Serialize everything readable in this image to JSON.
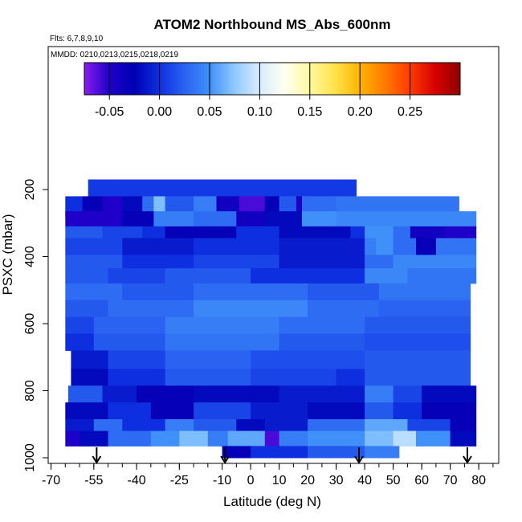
{
  "chart_data": {
    "type": "heatmap",
    "title": "ATOM2 Northbound MS_Abs_600nm",
    "subtitle_flights": "Flts: 6,7,8,9,10",
    "subtitle_dates": "MMDD: 0210,0213,0215,0218,0219",
    "xlabel": "Latitude (deg N)",
    "ylabel": "PSXC (mbar)",
    "xlim": [
      -71,
      87
    ],
    "ylim": [
      1000,
      100
    ],
    "x_ticks": [
      -70,
      -55,
      -40,
      -25,
      -10,
      0,
      10,
      20,
      30,
      40,
      50,
      60,
      70,
      80
    ],
    "y_ticks": [
      200,
      400,
      600,
      800,
      1000
    ],
    "colorbar": {
      "range": [
        -0.075,
        0.3
      ],
      "ticks": [
        "-0.05",
        "0.00",
        "0.05",
        "0.10",
        "0.15",
        "0.20",
        "0.25"
      ],
      "tick_values": [
        -0.05,
        0.0,
        0.05,
        0.1,
        0.15,
        0.2,
        0.25
      ],
      "colors": [
        "#8b1cf0",
        "#1e00c8",
        "#0000b4",
        "#0d2fe0",
        "#2a63f2",
        "#3f90f8",
        "#8ec9ff",
        "#d8ecff",
        "#fffff0",
        "#fff8a0",
        "#ffe24a",
        "#ffb400",
        "#ff7a00",
        "#ff3a00",
        "#d80000",
        "#900000"
      ]
    },
    "profile_markers_lat": [
      -54,
      -9,
      38,
      76
    ],
    "bands": [
      {
        "p_top": 170,
        "p_bot": 220,
        "x0": -57,
        "x1": 37,
        "segs": [
          [
            -57,
            37,
            0.005
          ]
        ]
      },
      {
        "p_top": 220,
        "p_bot": 280,
        "x0": -65,
        "x1": 73,
        "segs": [
          [
            -65,
            -59,
            0.0
          ],
          [
            -59,
            -52,
            -0.03
          ],
          [
            -52,
            -45,
            -0.05
          ],
          [
            -45,
            -38,
            -0.02
          ],
          [
            -38,
            -34,
            0.03
          ],
          [
            -34,
            -30,
            0.07
          ],
          [
            -30,
            -20,
            0.02
          ],
          [
            -20,
            -12,
            0.04
          ],
          [
            -12,
            -4,
            -0.04
          ],
          [
            -4,
            5,
            -0.06
          ],
          [
            5,
            10,
            -0.03
          ],
          [
            10,
            16,
            0.02
          ],
          [
            16,
            18,
            -0.05
          ],
          [
            18,
            30,
            0.03
          ],
          [
            30,
            73,
            0.035
          ]
        ]
      },
      {
        "p_top": 265,
        "p_bot": 310,
        "x0": -65,
        "x1": 79,
        "segs": [
          [
            -65,
            -45,
            -0.05
          ],
          [
            -45,
            -34,
            -0.03
          ],
          [
            -34,
            -20,
            0.04
          ],
          [
            -20,
            -5,
            0.03
          ],
          [
            -5,
            5,
            -0.04
          ],
          [
            5,
            18,
            -0.02
          ],
          [
            18,
            30,
            0.05
          ],
          [
            30,
            79,
            0.045
          ]
        ]
      },
      {
        "p_top": 310,
        "p_bot": 345,
        "x0": -65,
        "x1": 79,
        "segs": [
          [
            -65,
            -52,
            0.02
          ],
          [
            -52,
            -38,
            0.01
          ],
          [
            -38,
            -30,
            0.0
          ],
          [
            -30,
            -5,
            -0.03
          ],
          [
            -5,
            10,
            0.0
          ],
          [
            10,
            35,
            -0.02
          ],
          [
            35,
            40,
            0.0
          ],
          [
            40,
            50,
            0.05
          ],
          [
            50,
            56,
            0.03
          ],
          [
            56,
            68,
            -0.04
          ],
          [
            68,
            79,
            -0.05
          ]
        ]
      },
      {
        "p_top": 345,
        "p_bot": 395,
        "x0": -65,
        "x1": 79,
        "segs": [
          [
            -65,
            -45,
            0.01
          ],
          [
            -45,
            -20,
            -0.01
          ],
          [
            -20,
            10,
            0.0
          ],
          [
            10,
            40,
            -0.01
          ],
          [
            40,
            44,
            0.04
          ],
          [
            44,
            50,
            0.05
          ],
          [
            50,
            58,
            0.03
          ],
          [
            58,
            65,
            -0.03
          ],
          [
            65,
            79,
            0.035
          ]
        ]
      },
      {
        "p_top": 395,
        "p_bot": 435,
        "x0": -65,
        "x1": 79,
        "segs": [
          [
            -65,
            -45,
            0.02
          ],
          [
            -45,
            -20,
            0.0
          ],
          [
            -20,
            10,
            0.01
          ],
          [
            10,
            40,
            -0.01
          ],
          [
            40,
            50,
            0.03
          ],
          [
            50,
            79,
            0.045
          ]
        ]
      },
      {
        "p_top": 435,
        "p_bot": 480,
        "x0": -65,
        "x1": 79,
        "segs": [
          [
            -65,
            -50,
            0.02
          ],
          [
            -50,
            -30,
            0.01
          ],
          [
            -30,
            0,
            0.02
          ],
          [
            0,
            40,
            0.0
          ],
          [
            40,
            55,
            0.045
          ],
          [
            55,
            79,
            0.035
          ]
        ]
      },
      {
        "p_top": 480,
        "p_bot": 530,
        "x0": -65,
        "x1": 77,
        "segs": [
          [
            -65,
            -45,
            0.03
          ],
          [
            -45,
            -20,
            0.02
          ],
          [
            -20,
            20,
            0.03
          ],
          [
            20,
            45,
            0.02
          ],
          [
            45,
            77,
            0.035
          ]
        ]
      },
      {
        "p_top": 530,
        "p_bot": 580,
        "x0": -65,
        "x1": 77,
        "segs": [
          [
            -65,
            -50,
            0.02
          ],
          [
            -50,
            -20,
            0.03
          ],
          [
            -20,
            20,
            0.045
          ],
          [
            20,
            45,
            0.03
          ],
          [
            45,
            77,
            0.025
          ]
        ]
      },
      {
        "p_top": 580,
        "p_bot": 630,
        "x0": -65,
        "x1": 77,
        "segs": [
          [
            -65,
            -55,
            0.01
          ],
          [
            -55,
            -30,
            0.025
          ],
          [
            -30,
            10,
            0.04
          ],
          [
            10,
            40,
            0.03
          ],
          [
            40,
            77,
            0.02
          ]
        ]
      },
      {
        "p_top": 630,
        "p_bot": 680,
        "x0": -65,
        "x1": 77,
        "segs": [
          [
            -65,
            -55,
            0.0
          ],
          [
            -55,
            -30,
            0.02
          ],
          [
            -30,
            10,
            0.035
          ],
          [
            10,
            40,
            0.02
          ],
          [
            40,
            77,
            0.015
          ]
        ]
      },
      {
        "p_top": 680,
        "p_bot": 735,
        "x0": -63,
        "x1": 77,
        "segs": [
          [
            -63,
            -50,
            -0.01
          ],
          [
            -50,
            -30,
            0.01
          ],
          [
            -30,
            0,
            0.025
          ],
          [
            0,
            40,
            0.015
          ],
          [
            40,
            77,
            0.02
          ]
        ]
      },
      {
        "p_top": 735,
        "p_bot": 785,
        "x0": -63,
        "x1": 77,
        "segs": [
          [
            -63,
            -50,
            -0.02
          ],
          [
            -50,
            -30,
            0.0
          ],
          [
            -30,
            0,
            0.02
          ],
          [
            0,
            30,
            0.01
          ],
          [
            30,
            40,
            0.0
          ],
          [
            40,
            77,
            0.02
          ]
        ]
      },
      {
        "p_top": 785,
        "p_bot": 835,
        "x0": -64,
        "x1": 79,
        "segs": [
          [
            -64,
            -52,
            0.02
          ],
          [
            -52,
            -40,
            -0.01
          ],
          [
            -40,
            -20,
            -0.03
          ],
          [
            -20,
            10,
            -0.02
          ],
          [
            10,
            40,
            -0.01
          ],
          [
            40,
            50,
            0.04
          ],
          [
            50,
            60,
            0.01
          ],
          [
            60,
            79,
            -0.02
          ]
        ]
      },
      {
        "p_top": 835,
        "p_bot": 885,
        "x0": -65,
        "x1": 79,
        "segs": [
          [
            -65,
            -50,
            -0.02
          ],
          [
            -50,
            -35,
            0.0
          ],
          [
            -35,
            -20,
            -0.03
          ],
          [
            -20,
            0,
            0.01
          ],
          [
            0,
            20,
            -0.01
          ],
          [
            20,
            40,
            -0.02
          ],
          [
            40,
            50,
            0.02
          ],
          [
            50,
            60,
            0.0
          ],
          [
            60,
            79,
            -0.03
          ]
        ]
      },
      {
        "p_top": 885,
        "p_bot": 920,
        "x0": -65,
        "x1": 79,
        "segs": [
          [
            -65,
            -55,
            -0.01
          ],
          [
            -55,
            -45,
            0.03
          ],
          [
            -45,
            -30,
            0.0
          ],
          [
            -30,
            -20,
            0.04
          ],
          [
            -20,
            -5,
            0.02
          ],
          [
            -5,
            5,
            -0.02
          ],
          [
            5,
            20,
            -0.01
          ],
          [
            20,
            40,
            0.03
          ],
          [
            40,
            55,
            0.06
          ],
          [
            55,
            70,
            0.01
          ],
          [
            70,
            79,
            -0.03
          ]
        ]
      },
      {
        "p_top": 920,
        "p_bot": 965,
        "x0": -65,
        "x1": 79,
        "segs": [
          [
            -65,
            -60,
            -0.05
          ],
          [
            -60,
            -50,
            -0.02
          ],
          [
            -50,
            -35,
            0.03
          ],
          [
            -35,
            -25,
            0.05
          ],
          [
            -25,
            -15,
            0.07
          ],
          [
            -15,
            -8,
            0.04
          ],
          [
            -8,
            5,
            0.06
          ],
          [
            5,
            10,
            -0.06
          ],
          [
            10,
            20,
            0.04
          ],
          [
            20,
            40,
            0.05
          ],
          [
            40,
            50,
            0.07
          ],
          [
            50,
            58,
            0.09
          ],
          [
            58,
            70,
            0.05
          ],
          [
            70,
            79,
            -0.02
          ]
        ]
      },
      {
        "p_top": 965,
        "p_bot": 1000,
        "x0": -10,
        "x1": 52,
        "segs": [
          [
            -10,
            0,
            -0.03
          ],
          [
            0,
            20,
            0.0
          ],
          [
            20,
            40,
            0.02
          ],
          [
            40,
            52,
            0.04
          ]
        ]
      }
    ]
  }
}
